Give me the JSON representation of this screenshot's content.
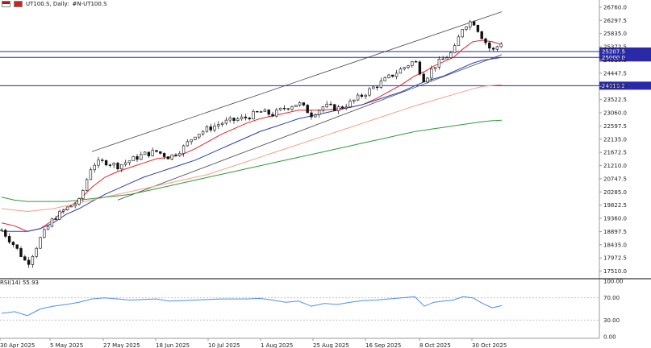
{
  "header": {
    "symbol_label": "UT100.S, Daily:",
    "description": "#N-UT100.S",
    "flag_icon": "us-flag-icon",
    "indicator_icon": "red-square-icon"
  },
  "rsi_panel": {
    "label": "RSI(14) 55.93",
    "levels": [
      70,
      30
    ],
    "axis_labels": [
      "100.00",
      "70.00",
      "30.00",
      "0.00"
    ]
  },
  "price_axis_labels": [
    "26760.0",
    "26297.5",
    "25835.0",
    "25372.5",
    "24910.0",
    "24447.5",
    "23985.0",
    "23522.5",
    "23060.0",
    "22597.5",
    "22135.0",
    "21672.5",
    "21210.0",
    "20747.5",
    "20285.0",
    "19822.5",
    "19360.0",
    "18897.5",
    "18435.0",
    "17972.5",
    "17510.0"
  ],
  "horizontal_levels": [
    {
      "label": "25207.5",
      "value": 25207.5
    },
    {
      "label": "25000.0",
      "value": 25000.0
    },
    {
      "label": "24010.2",
      "value": 24010.2
    }
  ],
  "date_labels": [
    "30 Apr 2025",
    "5 May 2025",
    "27 May 2025",
    "18 Jun 2025",
    "10 Jul 2025",
    "1 Aug 2025",
    "25 Aug 2025",
    "16 Sep 2025",
    "8 Oct 2025",
    "30 Oct 2025"
  ],
  "colors": {
    "level_line": "#2a2aa8",
    "ma_fast": "#e0262a",
    "ma_mid": "#2c3fb0",
    "ma_slow": "#f3a08a",
    "ma_200": "#2f9a3a",
    "rsi": "#4f8fe6",
    "trend": "#444444"
  },
  "chart_data": {
    "type": "line",
    "title": "UT100.S, Daily",
    "ylim": [
      17300,
      26900
    ],
    "series": [
      {
        "name": "UT100.S close",
        "x": [
          0,
          4,
          8,
          12,
          16,
          20,
          24,
          28,
          32,
          36,
          40,
          44,
          48,
          52,
          56,
          60,
          64,
          68,
          72,
          76,
          80,
          84,
          88,
          92,
          96,
          100,
          104,
          108,
          112,
          116,
          120,
          124,
          128,
          131,
          134,
          137,
          140,
          143,
          146,
          149,
          152,
          155
        ],
        "values": [
          18950,
          18400,
          17750,
          18650,
          19350,
          19700,
          19950,
          21250,
          21350,
          21200,
          21400,
          21600,
          21700,
          21500,
          21800,
          22300,
          22500,
          22700,
          22800,
          22900,
          23100,
          23000,
          23250,
          23400,
          23000,
          23300,
          23200,
          23400,
          23700,
          24000,
          24300,
          24600,
          24900,
          24200,
          24700,
          24950,
          25200,
          26100,
          26300,
          25700,
          25200,
          25550
        ]
      },
      {
        "name": "MA fast",
        "values": [
          19200,
          19100,
          18900,
          19000,
          19300,
          19700,
          20000,
          20450,
          20800,
          21000,
          21150,
          21300,
          21450,
          21500,
          21600,
          21800,
          22050,
          22300,
          22500,
          22700,
          22850,
          22950,
          23050,
          23150,
          23150,
          23150,
          23200,
          23250,
          23350,
          23550,
          23800,
          24050,
          24350,
          24500,
          24700,
          24850,
          25000,
          25300,
          25550,
          25600,
          25550,
          25450
        ]
      },
      {
        "name": "MA mid",
        "values": [
          18900,
          18900,
          18900,
          19000,
          19200,
          19500,
          19700,
          19950,
          20200,
          20400,
          20600,
          20800,
          20950,
          21100,
          21250,
          21400,
          21600,
          21800,
          22000,
          22200,
          22400,
          22550,
          22700,
          22850,
          22950,
          23050,
          23150,
          23250,
          23350,
          23500,
          23650,
          23800,
          24000,
          24150,
          24250,
          24350,
          24500,
          24650,
          24800,
          24900,
          24950,
          25000
        ]
      },
      {
        "name": "MA slow",
        "values": [
          19700,
          19650,
          19600,
          19650,
          19700,
          19800,
          19900,
          20000,
          20100,
          20200,
          20300,
          20400,
          20500,
          20600,
          20700,
          20800,
          20900,
          21050,
          21200,
          21350,
          21500,
          21650,
          21800,
          21950,
          22100,
          22250,
          22400,
          22550,
          22700,
          22850,
          23000,
          23150,
          23300,
          23400,
          23500,
          23600,
          23700,
          23800,
          23900,
          23980,
          24020,
          24050
        ]
      },
      {
        "name": "MA 200",
        "values": [
          20100,
          20000,
          19950,
          19950,
          19950,
          19950,
          20000,
          20050,
          20100,
          20150,
          20200,
          20300,
          20400,
          20500,
          20600,
          20700,
          20800,
          20900,
          21000,
          21100,
          21200,
          21300,
          21400,
          21500,
          21600,
          21700,
          21800,
          21900,
          22000,
          22100,
          22200,
          22300,
          22400,
          22450,
          22500,
          22550,
          22600,
          22650,
          22700,
          22750,
          22780,
          22800
        ]
      }
    ],
    "rsi_values": [
      42,
      45,
      38,
      50,
      55,
      58,
      62,
      68,
      70,
      68,
      66,
      67,
      68,
      64,
      65,
      66,
      67,
      68,
      68,
      68,
      69,
      66,
      62,
      64,
      55,
      60,
      58,
      62,
      65,
      66,
      68,
      70,
      72,
      55,
      62,
      64,
      66,
      72,
      70,
      60,
      52,
      56
    ],
    "xlabels": [
      "30 Apr 2025",
      "5 May 2025",
      "27 May 2025",
      "18 Jun 2025",
      "10 Jul 2025",
      "1 Aug 2025",
      "25 Aug 2025",
      "16 Sep 2025",
      "8 Oct 2025",
      "30 Oct 2025"
    ]
  }
}
